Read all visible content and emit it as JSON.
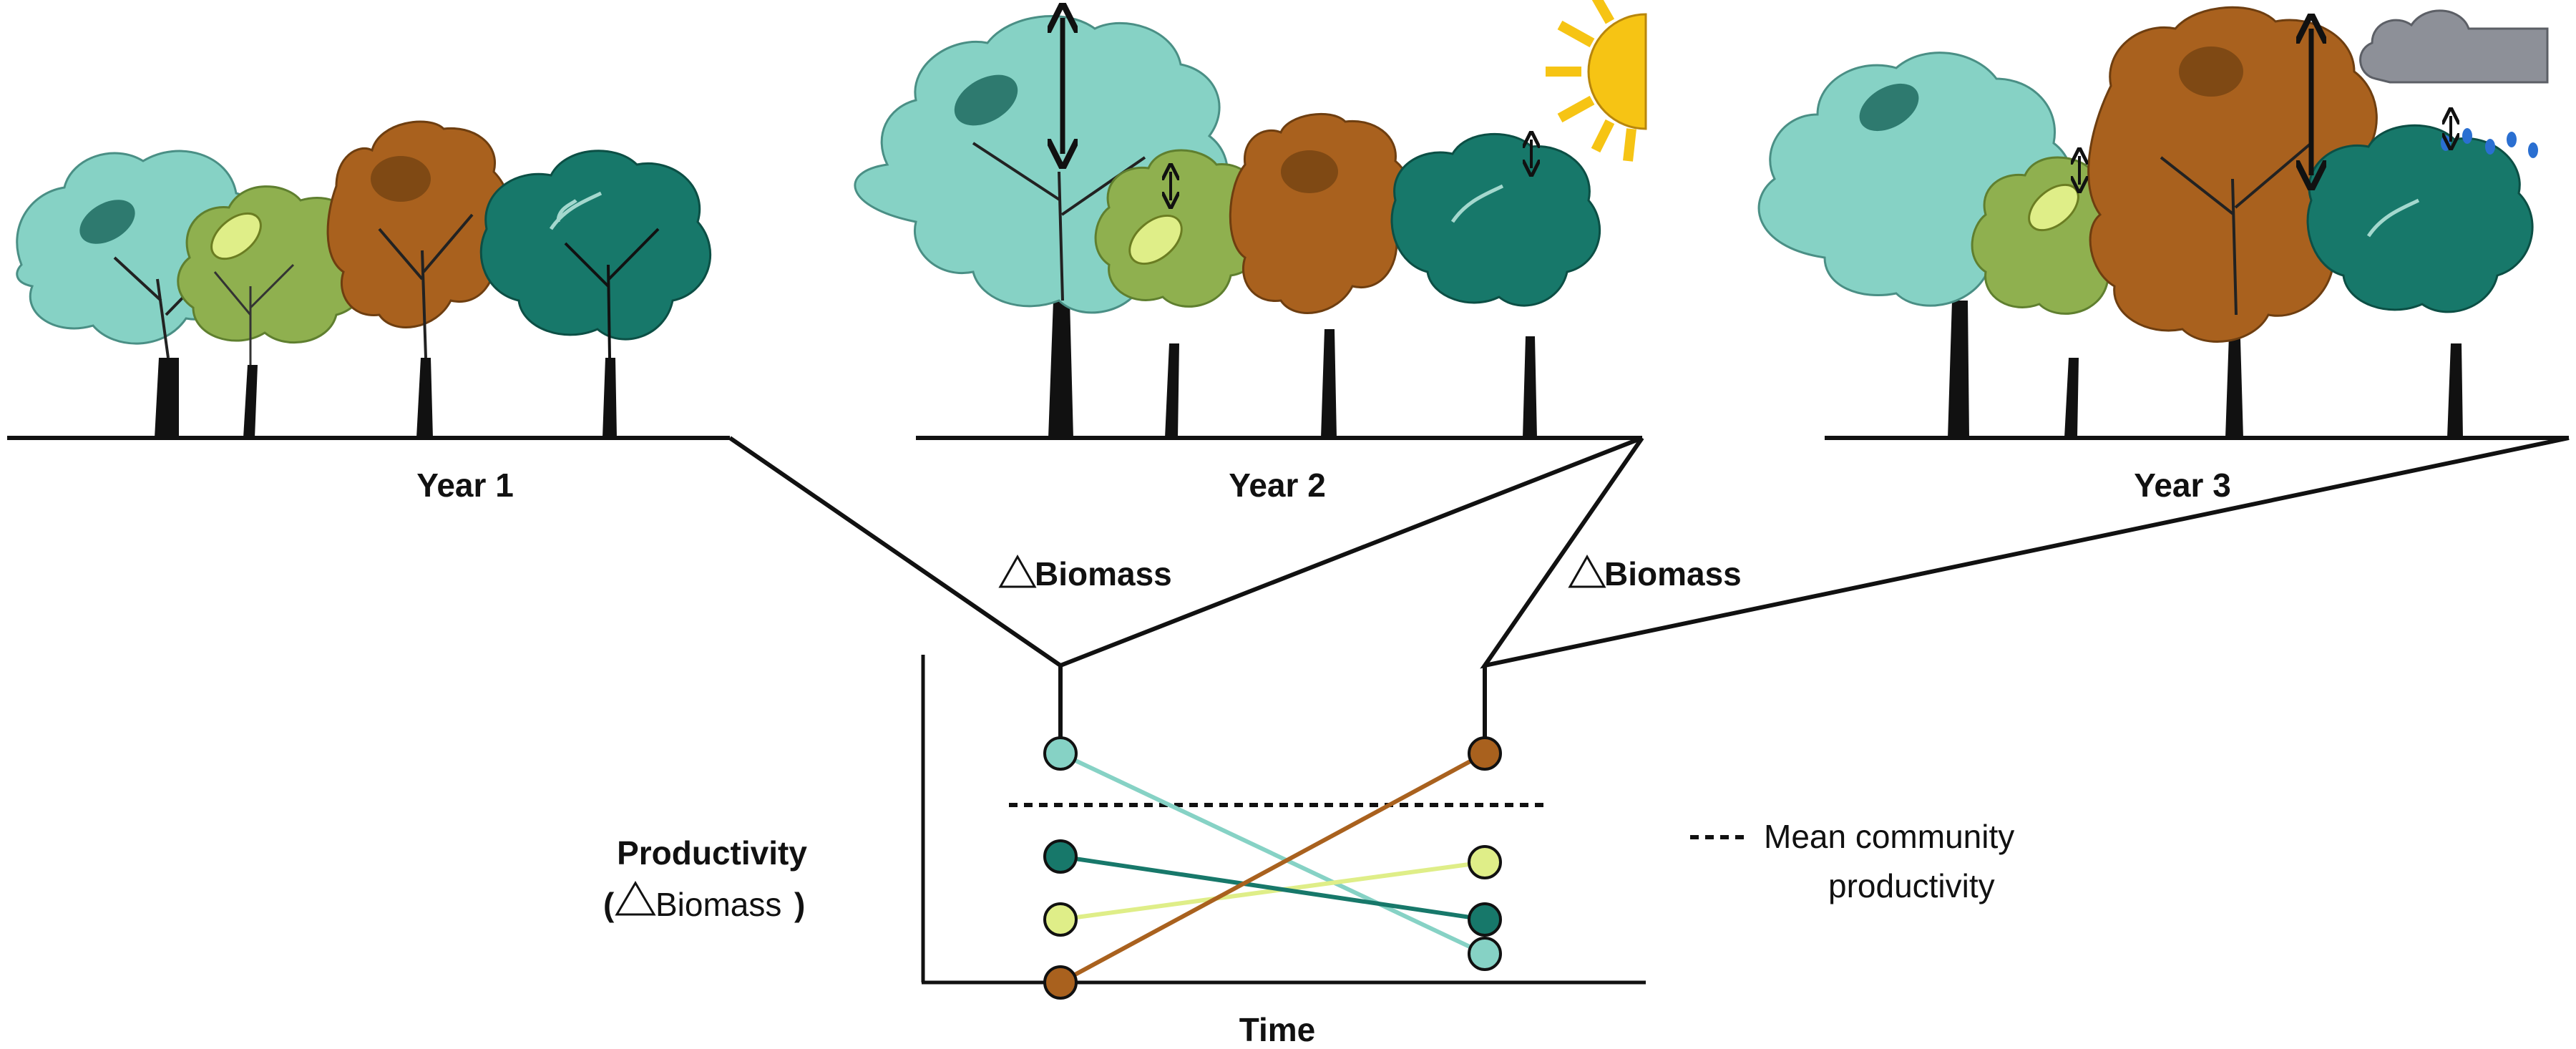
{
  "panels": [
    {
      "label": "Year 1"
    },
    {
      "label": "Year 2"
    },
    {
      "label": "Year 3"
    }
  ],
  "delta_labels": [
    "Biomass",
    "Biomass"
  ],
  "plot": {
    "ylabel_line1": "Productivity",
    "ylabel_line2_open": "(",
    "ylabel_line2_word": "Biomass",
    "ylabel_line2_close": ")",
    "xlabel": "Time"
  },
  "legend": {
    "line1": "Mean community",
    "line2": "productivity"
  },
  "species_colors": {
    "light_teal": "#86d2c5",
    "lime": "#dfee88",
    "brown": "#a9611e",
    "dark_teal": "#17786a"
  },
  "icons": [
    "sun-icon",
    "rain-cloud-icon",
    "leaf-icon"
  ],
  "chart_data": {
    "type": "line",
    "x": [
      1,
      2
    ],
    "series": [
      {
        "color": "#86d2c5",
        "values": [
          4,
          0.5
        ]
      },
      {
        "color": "#dfee88",
        "values": [
          1.1,
          2.1
        ]
      },
      {
        "color": "#17786a",
        "values": [
          2.2,
          1.1
        ]
      },
      {
        "color": "#a9611e",
        "values": [
          0,
          4
        ]
      }
    ],
    "mean_line": 3.1,
    "xlabel": "Time",
    "ylabel": "Productivity (△Biomass)",
    "ylim": [
      0,
      4.5
    ]
  }
}
